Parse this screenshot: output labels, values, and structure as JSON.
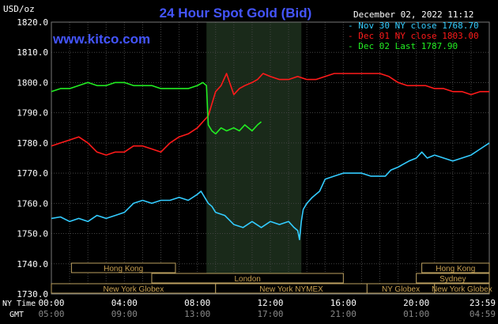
{
  "chart_data": {
    "type": "line",
    "title": "24 Hour Spot Gold (Bid)",
    "website": "www.kitco.com",
    "date_label": "December 02, 2022 11:12",
    "ylabel": "USD/oz",
    "ylim": [
      1730,
      1820
    ],
    "yticks": [
      1730,
      1740,
      1750,
      1760,
      1770,
      1780,
      1790,
      1800,
      1810,
      1820
    ],
    "ytick_labels": [
      "1730.0",
      "1740.0",
      "1750.0",
      "1760.0",
      "1770.0",
      "1780.0",
      "1790.0",
      "1800.0",
      "1810.0",
      "1820.0"
    ],
    "xlim": [
      0,
      24
    ],
    "xticks": [
      0,
      4,
      8,
      12,
      16,
      20,
      24
    ],
    "x_ny_labels": [
      "00:00",
      "04:00",
      "08:00",
      "12:00",
      "16:00",
      "20:00",
      "23:59"
    ],
    "x_gmt_labels": [
      "05:00",
      "09:00",
      "13:00",
      "17:00",
      "21:00",
      "01:00",
      "04:59"
    ],
    "row_label_ny": "NY Time",
    "row_label_gmt": "GMT",
    "grid": true,
    "shaded_region": [
      8.5,
      13.7
    ],
    "legend": [
      {
        "label": "Nov 30 NY close 1768.70",
        "color": "#33ccff"
      },
      {
        "label": "Dec 01 NY close 1803.00",
        "color": "#ff1a1a"
      },
      {
        "label": "Dec 02 Last 1787.90",
        "color": "#22ee22"
      }
    ],
    "series": [
      {
        "name": "Nov 30",
        "color": "#33ccff",
        "x": [
          0,
          0.5,
          1,
          1.5,
          2,
          2.5,
          3,
          3.5,
          4,
          4.5,
          5,
          5.5,
          6,
          6.5,
          7,
          7.5,
          8,
          8.2,
          8.4,
          8.6,
          8.8,
          9,
          9.5,
          10,
          10.5,
          11,
          11.5,
          12,
          12.5,
          13,
          13.3,
          13.5,
          13.6,
          13.7,
          13.8,
          14,
          14.3,
          14.7,
          15,
          15.5,
          16,
          16.5,
          17,
          17.5,
          18,
          18.3,
          18.6,
          19,
          19.3,
          19.6,
          20,
          20.3,
          20.6,
          21,
          21.5,
          22,
          22.5,
          23,
          23.5,
          24
        ],
        "y": [
          1755,
          1755.5,
          1754,
          1755,
          1754,
          1756,
          1755,
          1756,
          1757,
          1760,
          1761,
          1760,
          1761,
          1761,
          1762,
          1761,
          1763,
          1764,
          1762,
          1760,
          1759,
          1757,
          1756,
          1753,
          1752,
          1754,
          1752,
          1754,
          1753,
          1754,
          1752,
          1751,
          1748,
          1754,
          1758,
          1760,
          1762,
          1764,
          1768,
          1769,
          1770,
          1770,
          1770,
          1769,
          1769,
          1769,
          1771,
          1772,
          1773,
          1774,
          1775,
          1777,
          1775,
          1776,
          1775,
          1774,
          1775,
          1776,
          1778,
          1780
        ]
      },
      {
        "name": "Dec 01",
        "color": "#ff1a1a",
        "x": [
          0,
          0.5,
          1,
          1.5,
          2,
          2.5,
          3,
          3.5,
          4,
          4.5,
          5,
          5.5,
          6,
          6.5,
          7,
          7.5,
          8,
          8.3,
          8.6,
          9,
          9.3,
          9.6,
          10,
          10.3,
          10.6,
          11,
          11.3,
          11.6,
          12,
          12.5,
          13,
          13.5,
          14,
          14.5,
          15,
          15.5,
          16,
          16.5,
          17,
          17.5,
          18,
          18.5,
          19,
          19.5,
          20,
          20.5,
          21,
          21.5,
          22,
          22.5,
          23,
          23.5,
          24
        ],
        "y": [
          1779,
          1780,
          1781,
          1782,
          1780,
          1777,
          1776,
          1777,
          1777,
          1779,
          1779,
          1778,
          1777,
          1780,
          1782,
          1783,
          1785,
          1787,
          1789,
          1797,
          1799,
          1803,
          1796,
          1798,
          1799,
          1800,
          1801,
          1803,
          1802,
          1801,
          1801,
          1802,
          1801,
          1801,
          1802,
          1803,
          1803,
          1803,
          1803,
          1803,
          1803,
          1802,
          1800,
          1799,
          1799,
          1799,
          1798,
          1798,
          1797,
          1797,
          1796,
          1797,
          1797
        ]
      },
      {
        "name": "Dec 02",
        "color": "#22ee22",
        "x": [
          0,
          0.5,
          1,
          1.5,
          2,
          2.5,
          3,
          3.5,
          4,
          4.5,
          5,
          5.5,
          6,
          6.5,
          7,
          7.5,
          8,
          8.3,
          8.5,
          8.6,
          8.8,
          9,
          9.3,
          9.6,
          10,
          10.3,
          10.6,
          11,
          11.3,
          11.5
        ],
        "y": [
          1797,
          1798,
          1798,
          1799,
          1800,
          1799,
          1799,
          1800,
          1800,
          1799,
          1799,
          1799,
          1798,
          1798,
          1798,
          1798,
          1799,
          1800,
          1799,
          1786,
          1784,
          1783,
          1785,
          1784,
          1785,
          1784,
          1786,
          1784,
          1786,
          1787
        ]
      }
    ]
  },
  "sessions": [
    {
      "label": "Hong Kong",
      "row": 1,
      "start": 1.1,
      "end": 6.8
    },
    {
      "label": "London",
      "row": 2,
      "start": 5.5,
      "end": 16.0
    },
    {
      "label": "New York Globex",
      "row": 3,
      "start": 0.0,
      "end": 9.0
    },
    {
      "label": "New York NYMEX",
      "row": 3,
      "start": 9.0,
      "end": 17.3
    },
    {
      "label": "NY Globex",
      "row": 3,
      "start": 17.3,
      "end": 21.0
    },
    {
      "label": "Hong Kong",
      "row": 1,
      "start": 20.3,
      "end": 24.0
    },
    {
      "label": "Sydney",
      "row": 2,
      "start": 20.0,
      "end": 24.0
    },
    {
      "label": "New York Globex",
      "row": 3,
      "start": 21.0,
      "end": 24.0
    }
  ]
}
